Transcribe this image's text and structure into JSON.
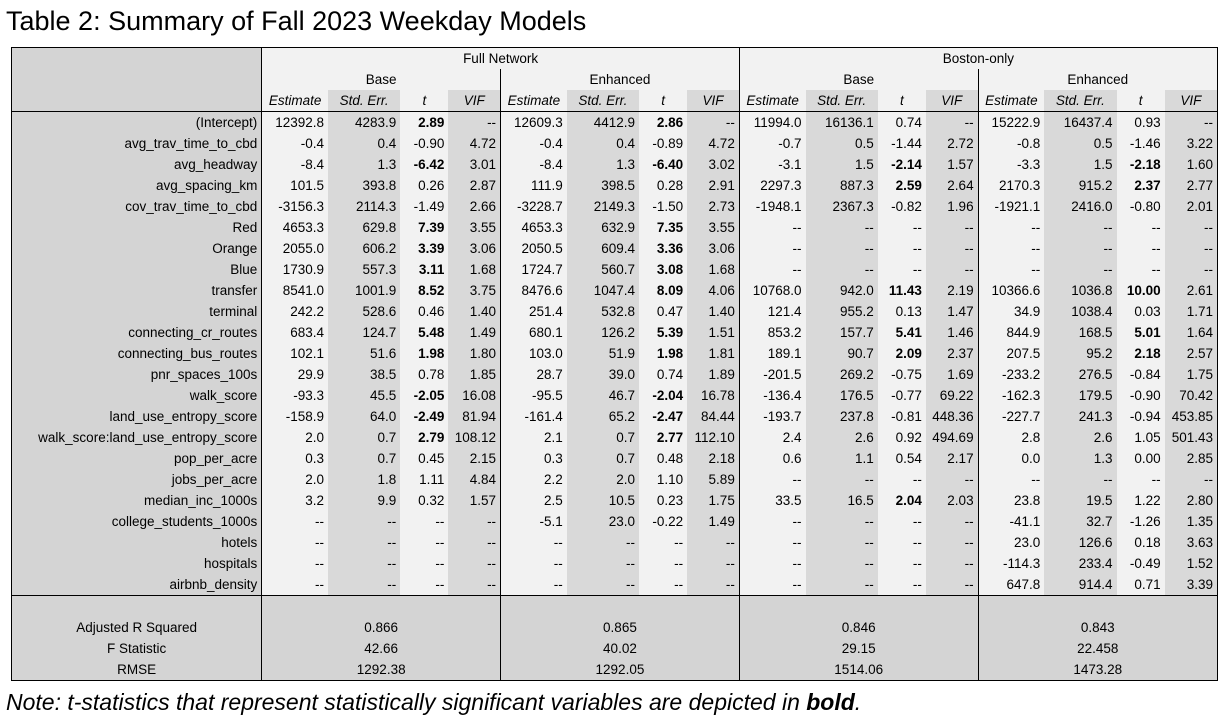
{
  "title": "Table 2: Summary of Fall 2023 Weekday Models",
  "note_prefix": "Note: t-statistics that represent statistically significant variables are depicted in ",
  "note_bold": "bold",
  "note_suffix": ".",
  "table": {
    "groups": [
      "Full Network",
      "Boston-only"
    ],
    "models": [
      "Base",
      "Enhanced",
      "Base",
      "Enhanced"
    ],
    "columns": [
      "Estimate",
      "Std. Err.",
      "t",
      "VIF"
    ],
    "rows": [
      {
        "label": "(Intercept)",
        "cells": [
          "12392.8",
          "4283.9",
          "2.89",
          "--",
          "12609.3",
          "4412.9",
          "2.86",
          "--",
          "11994.0",
          "16136.1",
          "0.74",
          "--",
          "15222.9",
          "16437.4",
          "0.93",
          "--"
        ],
        "bold": [
          2,
          6
        ]
      },
      {
        "label": "avg_trav_time_to_cbd",
        "cells": [
          "-0.4",
          "0.4",
          "-0.90",
          "4.72",
          "-0.4",
          "0.4",
          "-0.89",
          "4.72",
          "-0.7",
          "0.5",
          "-1.44",
          "2.72",
          "-0.8",
          "0.5",
          "-1.46",
          "3.22"
        ],
        "bold": []
      },
      {
        "label": "avg_headway",
        "cells": [
          "-8.4",
          "1.3",
          "-6.42",
          "3.01",
          "-8.4",
          "1.3",
          "-6.40",
          "3.02",
          "-3.1",
          "1.5",
          "-2.14",
          "1.57",
          "-3.3",
          "1.5",
          "-2.18",
          "1.60"
        ],
        "bold": [
          2,
          6,
          10,
          14
        ]
      },
      {
        "label": "avg_spacing_km",
        "cells": [
          "101.5",
          "393.8",
          "0.26",
          "2.87",
          "111.9",
          "398.5",
          "0.28",
          "2.91",
          "2297.3",
          "887.3",
          "2.59",
          "2.64",
          "2170.3",
          "915.2",
          "2.37",
          "2.77"
        ],
        "bold": [
          10,
          14
        ]
      },
      {
        "label": "cov_trav_time_to_cbd",
        "cells": [
          "-3156.3",
          "2114.3",
          "-1.49",
          "2.66",
          "-3228.7",
          "2149.3",
          "-1.50",
          "2.73",
          "-1948.1",
          "2367.3",
          "-0.82",
          "1.96",
          "-1921.1",
          "2416.0",
          "-0.80",
          "2.01"
        ],
        "bold": []
      },
      {
        "label": "Red",
        "cells": [
          "4653.3",
          "629.8",
          "7.39",
          "3.55",
          "4653.3",
          "632.9",
          "7.35",
          "3.55",
          "--",
          "--",
          "--",
          "--",
          "--",
          "--",
          "--",
          "--"
        ],
        "bold": [
          2,
          6
        ]
      },
      {
        "label": "Orange",
        "cells": [
          "2055.0",
          "606.2",
          "3.39",
          "3.06",
          "2050.5",
          "609.4",
          "3.36",
          "3.06",
          "--",
          "--",
          "--",
          "--",
          "--",
          "--",
          "--",
          "--"
        ],
        "bold": [
          2,
          6
        ]
      },
      {
        "label": "Blue",
        "cells": [
          "1730.9",
          "557.3",
          "3.11",
          "1.68",
          "1724.7",
          "560.7",
          "3.08",
          "1.68",
          "--",
          "--",
          "--",
          "--",
          "--",
          "--",
          "--",
          "--"
        ],
        "bold": [
          2,
          6
        ]
      },
      {
        "label": "transfer",
        "cells": [
          "8541.0",
          "1001.9",
          "8.52",
          "3.75",
          "8476.6",
          "1047.4",
          "8.09",
          "4.06",
          "10768.0",
          "942.0",
          "11.43",
          "2.19",
          "10366.6",
          "1036.8",
          "10.00",
          "2.61"
        ],
        "bold": [
          2,
          6,
          10,
          14
        ]
      },
      {
        "label": "terminal",
        "cells": [
          "242.2",
          "528.6",
          "0.46",
          "1.40",
          "251.4",
          "532.8",
          "0.47",
          "1.40",
          "121.4",
          "955.2",
          "0.13",
          "1.47",
          "34.9",
          "1038.4",
          "0.03",
          "1.71"
        ],
        "bold": []
      },
      {
        "label": "connecting_cr_routes",
        "cells": [
          "683.4",
          "124.7",
          "5.48",
          "1.49",
          "680.1",
          "126.2",
          "5.39",
          "1.51",
          "853.2",
          "157.7",
          "5.41",
          "1.46",
          "844.9",
          "168.5",
          "5.01",
          "1.64"
        ],
        "bold": [
          2,
          6,
          10,
          14
        ]
      },
      {
        "label": "connecting_bus_routes",
        "cells": [
          "102.1",
          "51.6",
          "1.98",
          "1.80",
          "103.0",
          "51.9",
          "1.98",
          "1.81",
          "189.1",
          "90.7",
          "2.09",
          "2.37",
          "207.5",
          "95.2",
          "2.18",
          "2.57"
        ],
        "bold": [
          2,
          6,
          10,
          14
        ]
      },
      {
        "label": "pnr_spaces_100s",
        "cells": [
          "29.9",
          "38.5",
          "0.78",
          "1.85",
          "28.7",
          "39.0",
          "0.74",
          "1.89",
          "-201.5",
          "269.2",
          "-0.75",
          "1.69",
          "-233.2",
          "276.5",
          "-0.84",
          "1.75"
        ],
        "bold": []
      },
      {
        "label": "walk_score",
        "cells": [
          "-93.3",
          "45.5",
          "-2.05",
          "16.08",
          "-95.5",
          "46.7",
          "-2.04",
          "16.78",
          "-136.4",
          "176.5",
          "-0.77",
          "69.22",
          "-162.3",
          "179.5",
          "-0.90",
          "70.42"
        ],
        "bold": [
          2,
          6
        ]
      },
      {
        "label": "land_use_entropy_score",
        "cells": [
          "-158.9",
          "64.0",
          "-2.49",
          "81.94",
          "-161.4",
          "65.2",
          "-2.47",
          "84.44",
          "-193.7",
          "237.8",
          "-0.81",
          "448.36",
          "-227.7",
          "241.3",
          "-0.94",
          "453.85"
        ],
        "bold": [
          2,
          6
        ]
      },
      {
        "label": "walk_score:land_use_entropy_score",
        "cells": [
          "2.0",
          "0.7",
          "2.79",
          "108.12",
          "2.1",
          "0.7",
          "2.77",
          "112.10",
          "2.4",
          "2.6",
          "0.92",
          "494.69",
          "2.8",
          "2.6",
          "1.05",
          "501.43"
        ],
        "bold": [
          2,
          6
        ]
      },
      {
        "label": "pop_per_acre",
        "cells": [
          "0.3",
          "0.7",
          "0.45",
          "2.15",
          "0.3",
          "0.7",
          "0.48",
          "2.18",
          "0.6",
          "1.1",
          "0.54",
          "2.17",
          "0.0",
          "1.3",
          "0.00",
          "2.85"
        ],
        "bold": []
      },
      {
        "label": "jobs_per_acre",
        "cells": [
          "2.0",
          "1.8",
          "1.11",
          "4.84",
          "2.2",
          "2.0",
          "1.10",
          "5.89",
          "--",
          "--",
          "--",
          "--",
          "--",
          "--",
          "--",
          "--"
        ],
        "bold": []
      },
      {
        "label": "median_inc_1000s",
        "cells": [
          "3.2",
          "9.9",
          "0.32",
          "1.57",
          "2.5",
          "10.5",
          "0.23",
          "1.75",
          "33.5",
          "16.5",
          "2.04",
          "2.03",
          "23.8",
          "19.5",
          "1.22",
          "2.80"
        ],
        "bold": [
          10
        ]
      },
      {
        "label": "college_students_1000s",
        "cells": [
          "--",
          "--",
          "--",
          "--",
          "-5.1",
          "23.0",
          "-0.22",
          "1.49",
          "--",
          "--",
          "--",
          "--",
          "-41.1",
          "32.7",
          "-1.26",
          "1.35"
        ],
        "bold": []
      },
      {
        "label": "hotels",
        "cells": [
          "--",
          "--",
          "--",
          "--",
          "--",
          "--",
          "--",
          "--",
          "--",
          "--",
          "--",
          "--",
          "23.0",
          "126.6",
          "0.18",
          "3.63"
        ],
        "bold": []
      },
      {
        "label": "hospitals",
        "cells": [
          "--",
          "--",
          "--",
          "--",
          "--",
          "--",
          "--",
          "--",
          "--",
          "--",
          "--",
          "--",
          "-114.3",
          "233.4",
          "-0.49",
          "1.52"
        ],
        "bold": []
      },
      {
        "label": "airbnb_density",
        "cells": [
          "--",
          "--",
          "--",
          "--",
          "--",
          "--",
          "--",
          "--",
          "--",
          "--",
          "--",
          "--",
          "647.8",
          "914.4",
          "0.71",
          "3.39"
        ],
        "bold": []
      }
    ],
    "stats": [
      {
        "label": "Adjusted R Squared",
        "values": [
          "0.866",
          "0.865",
          "0.846",
          "0.843"
        ]
      },
      {
        "label": "F Statistic",
        "values": [
          "42.66",
          "40.02",
          "29.15",
          "22.458"
        ]
      },
      {
        "label": "RMSE",
        "values": [
          "1292.38",
          "1292.05",
          "1514.06",
          "1473.28"
        ]
      }
    ]
  }
}
